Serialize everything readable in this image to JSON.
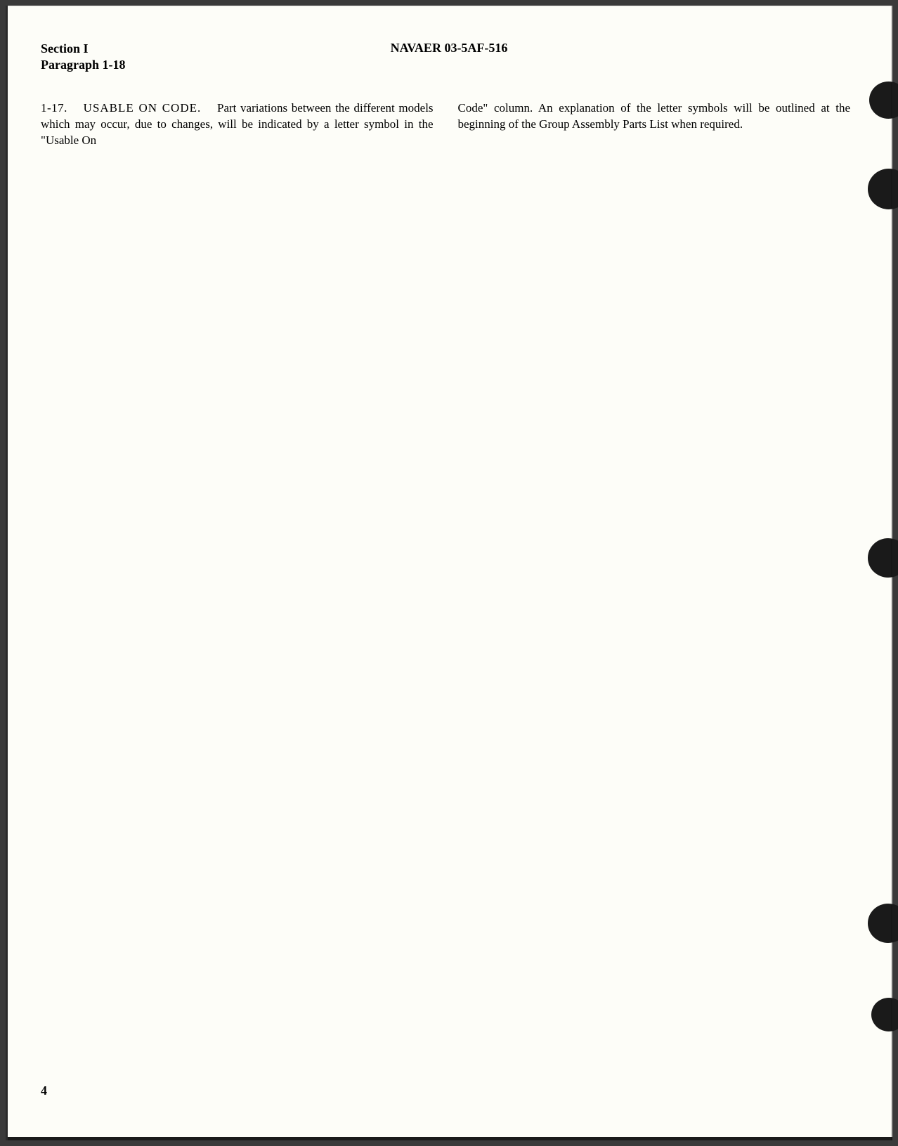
{
  "header": {
    "section": "Section I",
    "paragraph": "Paragraph 1-18",
    "docNumber": "NAVAER 03-5AF-516"
  },
  "body": {
    "paraNum": "1-17.",
    "paraTitle": "USABLE ON CODE.",
    "col1": "Part variations between the different models which may occur, due to changes, will be indicated by a letter symbol in the \"Usable On",
    "col2": "Code\" column. An explanation of the letter symbols will be outlined at the beginning of the Group Assembly Parts List when required."
  },
  "pageNumber": "4",
  "styling": {
    "pageBackground": "#fdfdf8",
    "textColor": "#000000",
    "holeColor": "#1a1a1a",
    "fontSize": 17,
    "headerFontSize": 18,
    "fontFamily": "Georgia, Times New Roman, serif"
  }
}
